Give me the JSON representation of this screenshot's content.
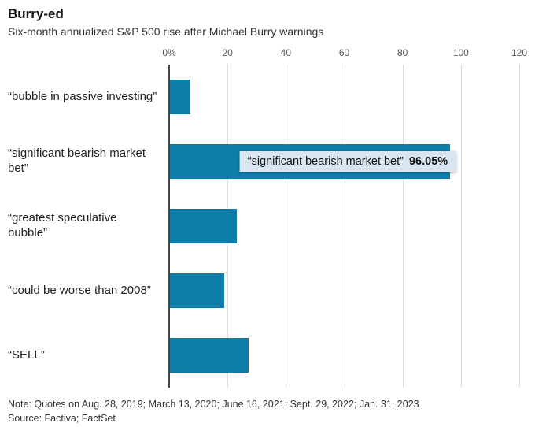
{
  "title": "Burry-ed",
  "subtitle": "Six-month annualized S&P 500 rise after Michael Burry warnings",
  "note": "Note: Quotes on Aug. 28, 2019; March 13, 2020; June 16, 2021; Sept. 29, 2022; Jan. 31, 2023",
  "source": "Source: Factiva; FactSet",
  "colors": {
    "bar": "#0d7eaa",
    "grid": "#dcdcdc",
    "zero_axis": "#444444",
    "tooltip_bg": "#d9e6ef",
    "text": "#222222"
  },
  "chart_data": {
    "type": "bar",
    "orientation": "horizontal",
    "title": "Burry-ed",
    "subtitle": "Six-month annualized S&P 500 rise after Michael Burry warnings",
    "categories": [
      "“bubble in passive investing”",
      "“significant bearish market bet”",
      "“greatest speculative bubble”",
      "“could be worse than 2008”",
      "“SELL”"
    ],
    "values": [
      7,
      96.05,
      23,
      18.5,
      27
    ],
    "unit": "%",
    "xlim": [
      0,
      120
    ],
    "xticks": [
      {
        "label": "0%",
        "value": 0
      },
      {
        "label": "20",
        "value": 20
      },
      {
        "label": "40",
        "value": 40
      },
      {
        "label": "60",
        "value": 60
      },
      {
        "label": "80",
        "value": 80
      },
      {
        "label": "100",
        "value": 100
      },
      {
        "label": "120",
        "value": 120
      }
    ],
    "grid": true,
    "legend": false,
    "tooltip": {
      "label": "“significant bearish market bet”",
      "value": "96.05%",
      "target_index": 1
    }
  }
}
